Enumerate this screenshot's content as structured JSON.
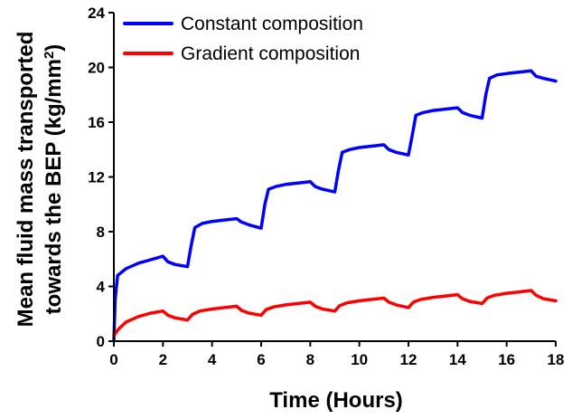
{
  "chart_data": {
    "type": "line",
    "xlabel": "Time (Hours)",
    "ylabel_line1": "Mean fluid mass transported",
    "ylabel_line2_prefix": "towards the ",
    "ylabel_line2_bold": "BEP",
    "ylabel_line2_unit": " (kg/mm",
    "ylabel_line2_sup": "2",
    "ylabel_line2_end": ")",
    "xlim": [
      0,
      18
    ],
    "ylim": [
      0,
      24
    ],
    "xticks": [
      0,
      2,
      4,
      6,
      8,
      10,
      12,
      14,
      16,
      18
    ],
    "yticks": [
      0,
      4,
      8,
      12,
      16,
      20,
      24
    ],
    "legend_position": "top-left",
    "grid": false,
    "series": [
      {
        "name": "Constant composition",
        "color": "#0000ff",
        "points": [
          [
            0,
            0
          ],
          [
            0.05,
            3.0
          ],
          [
            0.15,
            4.8
          ],
          [
            0.5,
            5.3
          ],
          [
            1.0,
            5.7
          ],
          [
            1.5,
            5.95
          ],
          [
            2.0,
            6.2
          ],
          [
            2.2,
            5.8
          ],
          [
            2.5,
            5.6
          ],
          [
            3.0,
            5.45
          ],
          [
            3.15,
            7.0
          ],
          [
            3.3,
            8.3
          ],
          [
            3.6,
            8.6
          ],
          [
            4.0,
            8.75
          ],
          [
            4.5,
            8.85
          ],
          [
            5.0,
            8.95
          ],
          [
            5.2,
            8.7
          ],
          [
            5.5,
            8.5
          ],
          [
            6.0,
            8.25
          ],
          [
            6.15,
            10.0
          ],
          [
            6.3,
            11.1
          ],
          [
            6.6,
            11.3
          ],
          [
            7.0,
            11.45
          ],
          [
            7.5,
            11.55
          ],
          [
            8.0,
            11.65
          ],
          [
            8.2,
            11.3
          ],
          [
            8.5,
            11.1
          ],
          [
            9.0,
            10.9
          ],
          [
            9.15,
            12.5
          ],
          [
            9.3,
            13.8
          ],
          [
            9.6,
            14.0
          ],
          [
            10.0,
            14.15
          ],
          [
            10.5,
            14.25
          ],
          [
            11.0,
            14.35
          ],
          [
            11.2,
            14.0
          ],
          [
            11.5,
            13.8
          ],
          [
            12.0,
            13.6
          ],
          [
            12.15,
            15.0
          ],
          [
            12.3,
            16.5
          ],
          [
            12.6,
            16.7
          ],
          [
            13.0,
            16.85
          ],
          [
            13.5,
            16.95
          ],
          [
            14.0,
            17.05
          ],
          [
            14.2,
            16.7
          ],
          [
            14.5,
            16.5
          ],
          [
            15.0,
            16.3
          ],
          [
            15.15,
            18.0
          ],
          [
            15.3,
            19.2
          ],
          [
            15.6,
            19.45
          ],
          [
            16.0,
            19.55
          ],
          [
            16.5,
            19.65
          ],
          [
            17.0,
            19.75
          ],
          [
            17.2,
            19.35
          ],
          [
            17.5,
            19.2
          ],
          [
            18.0,
            19.0
          ]
        ]
      },
      {
        "name": "Gradient composition",
        "color": "#ff0000",
        "points": [
          [
            0,
            0.4
          ],
          [
            0.2,
            0.9
          ],
          [
            0.5,
            1.4
          ],
          [
            1.0,
            1.8
          ],
          [
            1.5,
            2.05
          ],
          [
            2.0,
            2.2
          ],
          [
            2.2,
            1.9
          ],
          [
            2.5,
            1.7
          ],
          [
            3.0,
            1.55
          ],
          [
            3.2,
            1.95
          ],
          [
            3.5,
            2.2
          ],
          [
            4.0,
            2.35
          ],
          [
            4.5,
            2.45
          ],
          [
            5.0,
            2.55
          ],
          [
            5.2,
            2.25
          ],
          [
            5.5,
            2.05
          ],
          [
            6.0,
            1.9
          ],
          [
            6.2,
            2.3
          ],
          [
            6.5,
            2.5
          ],
          [
            7.0,
            2.65
          ],
          [
            7.5,
            2.75
          ],
          [
            8.0,
            2.85
          ],
          [
            8.2,
            2.55
          ],
          [
            8.5,
            2.35
          ],
          [
            9.0,
            2.2
          ],
          [
            9.2,
            2.6
          ],
          [
            9.5,
            2.8
          ],
          [
            10.0,
            2.95
          ],
          [
            10.5,
            3.05
          ],
          [
            11.0,
            3.15
          ],
          [
            11.2,
            2.85
          ],
          [
            11.5,
            2.65
          ],
          [
            12.0,
            2.45
          ],
          [
            12.2,
            2.85
          ],
          [
            12.5,
            3.05
          ],
          [
            13.0,
            3.2
          ],
          [
            13.5,
            3.3
          ],
          [
            14.0,
            3.4
          ],
          [
            14.2,
            3.1
          ],
          [
            14.5,
            2.9
          ],
          [
            15.0,
            2.75
          ],
          [
            15.2,
            3.15
          ],
          [
            15.5,
            3.35
          ],
          [
            16.0,
            3.5
          ],
          [
            16.5,
            3.6
          ],
          [
            17.0,
            3.7
          ],
          [
            17.2,
            3.35
          ],
          [
            17.5,
            3.1
          ],
          [
            18.0,
            2.95
          ]
        ]
      }
    ]
  }
}
